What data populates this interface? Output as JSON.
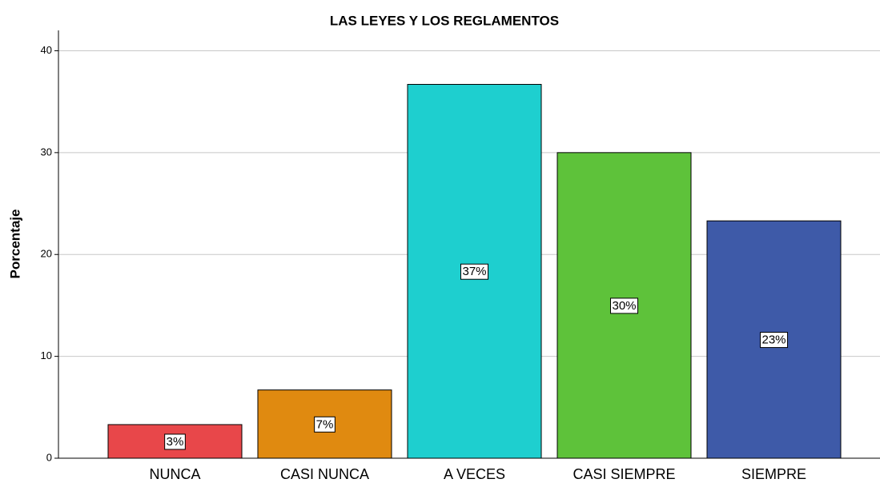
{
  "chart_data": {
    "type": "bar",
    "title": "LAS LEYES Y LOS REGLAMENTOS",
    "y_label": "Porcentaje",
    "categories": [
      "NUNCA",
      "CASI NUNCA",
      "A VECES",
      "CASI SIEMPRE",
      "SIEMPRE"
    ],
    "values": [
      3.3,
      6.7,
      36.7,
      30,
      23.3
    ],
    "value_labels": [
      "3%",
      "7%",
      "37%",
      "30%",
      "23%"
    ],
    "colors": [
      "#e8474a",
      "#e08a10",
      "#1ecfcf",
      "#5ec23a",
      "#3e5aa8"
    ],
    "ylim": [
      0,
      42
    ],
    "yticks": [
      0,
      10,
      20,
      30,
      40
    ],
    "grid": true
  }
}
